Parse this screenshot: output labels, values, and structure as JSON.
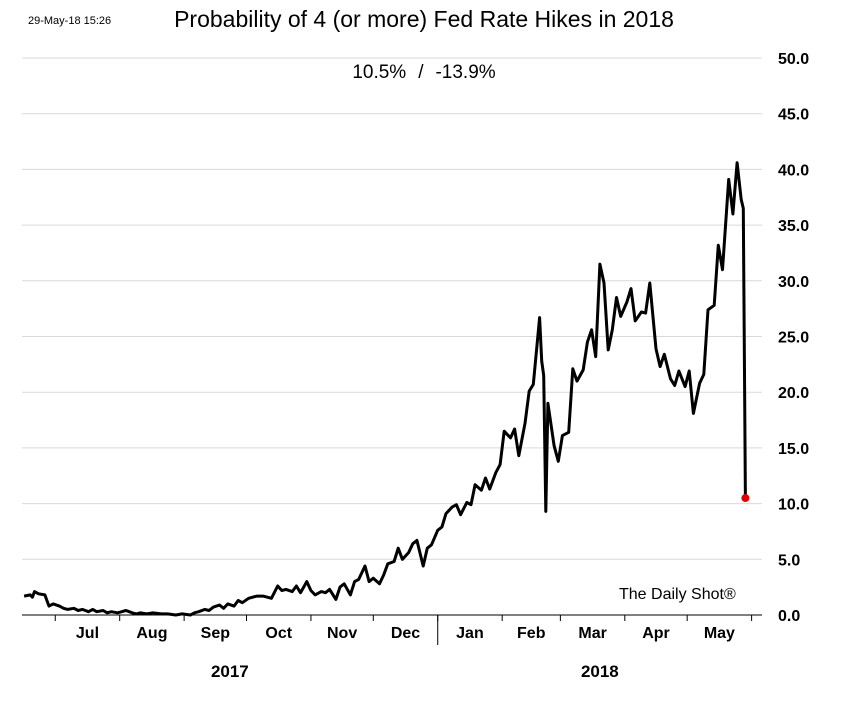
{
  "timestamp": "29-May-18 15:26",
  "watermark": "The Daily Shot®",
  "chart_data": {
    "type": "line",
    "title": "Probability of 4 (or more) Fed Rate Hikes in 2018",
    "subtitle_value": "10.5%",
    "subtitle_separator": "/",
    "subtitle_change": "-13.9%",
    "xlabel": "",
    "ylabel": "",
    "ylim": [
      0,
      50
    ],
    "yticks": [
      "0.0",
      "5.0",
      "10.0",
      "15.0",
      "20.0",
      "25.0",
      "30.0",
      "35.0",
      "40.0",
      "45.0",
      "50.0"
    ],
    "y_axis_side": "right",
    "grid": true,
    "x_month_labels": [
      "Jul",
      "Aug",
      "Sep",
      "Oct",
      "Nov",
      "Dec",
      "Jan",
      "Feb",
      "Mar",
      "Apr",
      "May"
    ],
    "x_year_labels": [
      "2017",
      "2018"
    ],
    "x_start": "2017-06-15",
    "x_end": "2018-06-06",
    "last_point_color": "#e00000",
    "line_color": "#000000",
    "series": [
      {
        "values": [
          [
            "2017-06-16",
            1.7
          ],
          [
            "2017-06-19",
            1.8
          ],
          [
            "2017-06-20",
            1.6
          ],
          [
            "2017-06-21",
            2.1
          ],
          [
            "2017-06-23",
            1.9
          ],
          [
            "2017-06-26",
            1.8
          ],
          [
            "2017-06-27",
            1.3
          ],
          [
            "2017-06-28",
            0.8
          ],
          [
            "2017-06-30",
            1.0
          ],
          [
            "2017-07-03",
            0.8
          ],
          [
            "2017-07-05",
            0.6
          ],
          [
            "2017-07-07",
            0.5
          ],
          [
            "2017-07-10",
            0.6
          ],
          [
            "2017-07-12",
            0.4
          ],
          [
            "2017-07-14",
            0.5
          ],
          [
            "2017-07-17",
            0.3
          ],
          [
            "2017-07-19",
            0.5
          ],
          [
            "2017-07-21",
            0.3
          ],
          [
            "2017-07-24",
            0.4
          ],
          [
            "2017-07-26",
            0.2
          ],
          [
            "2017-07-28",
            0.3
          ],
          [
            "2017-07-31",
            0.2
          ],
          [
            "2017-08-02",
            0.3
          ],
          [
            "2017-08-04",
            0.4
          ],
          [
            "2017-08-07",
            0.2
          ],
          [
            "2017-08-09",
            0.1
          ],
          [
            "2017-08-11",
            0.2
          ],
          [
            "2017-08-14",
            0.1
          ],
          [
            "2017-08-17",
            0.2
          ],
          [
            "2017-08-21",
            0.1
          ],
          [
            "2017-08-24",
            0.1
          ],
          [
            "2017-08-28",
            0.0
          ],
          [
            "2017-08-31",
            0.1
          ],
          [
            "2017-09-04",
            0.0
          ],
          [
            "2017-09-06",
            0.2
          ],
          [
            "2017-09-08",
            0.3
          ],
          [
            "2017-09-11",
            0.5
          ],
          [
            "2017-09-13",
            0.4
          ],
          [
            "2017-09-15",
            0.7
          ],
          [
            "2017-09-18",
            0.9
          ],
          [
            "2017-09-20",
            0.6
          ],
          [
            "2017-09-22",
            1.0
          ],
          [
            "2017-09-25",
            0.8
          ],
          [
            "2017-09-27",
            1.3
          ],
          [
            "2017-09-29",
            1.1
          ],
          [
            "2017-10-02",
            1.5
          ],
          [
            "2017-10-04",
            1.6
          ],
          [
            "2017-10-06",
            1.7
          ],
          [
            "2017-10-09",
            1.7
          ],
          [
            "2017-10-11",
            1.6
          ],
          [
            "2017-10-13",
            1.5
          ],
          [
            "2017-10-16",
            2.6
          ],
          [
            "2017-10-18",
            2.2
          ],
          [
            "2017-10-20",
            2.3
          ],
          [
            "2017-10-23",
            2.1
          ],
          [
            "2017-10-25",
            2.6
          ],
          [
            "2017-10-27",
            2.0
          ],
          [
            "2017-10-30",
            3.0
          ],
          [
            "2017-11-01",
            2.2
          ],
          [
            "2017-11-03",
            1.8
          ],
          [
            "2017-11-06",
            2.1
          ],
          [
            "2017-11-08",
            2.0
          ],
          [
            "2017-11-10",
            2.3
          ],
          [
            "2017-11-13",
            1.4
          ],
          [
            "2017-11-15",
            2.5
          ],
          [
            "2017-11-17",
            2.8
          ],
          [
            "2017-11-20",
            1.8
          ],
          [
            "2017-11-22",
            3.0
          ],
          [
            "2017-11-24",
            3.2
          ],
          [
            "2017-11-27",
            4.4
          ],
          [
            "2017-11-29",
            3.0
          ],
          [
            "2017-12-01",
            3.3
          ],
          [
            "2017-12-04",
            2.8
          ],
          [
            "2017-12-06",
            3.6
          ],
          [
            "2017-12-08",
            4.6
          ],
          [
            "2017-12-11",
            4.8
          ],
          [
            "2017-12-13",
            6.0
          ],
          [
            "2017-12-15",
            5.0
          ],
          [
            "2017-12-18",
            5.6
          ],
          [
            "2017-12-20",
            6.4
          ],
          [
            "2017-12-22",
            6.7
          ],
          [
            "2017-12-25",
            4.4
          ],
          [
            "2017-12-27",
            6.0
          ],
          [
            "2017-12-29",
            6.3
          ],
          [
            "2018-01-01",
            7.6
          ],
          [
            "2018-01-03",
            7.9
          ],
          [
            "2018-01-05",
            9.1
          ],
          [
            "2018-01-08",
            9.7
          ],
          [
            "2018-01-10",
            9.9
          ],
          [
            "2018-01-12",
            9.0
          ],
          [
            "2018-01-15",
            10.1
          ],
          [
            "2018-01-17",
            9.9
          ],
          [
            "2018-01-19",
            11.7
          ],
          [
            "2018-01-22",
            11.2
          ],
          [
            "2018-01-24",
            12.3
          ],
          [
            "2018-01-26",
            11.3
          ],
          [
            "2018-01-29",
            12.8
          ],
          [
            "2018-01-31",
            13.5
          ],
          [
            "2018-02-02",
            16.5
          ],
          [
            "2018-02-05",
            15.9
          ],
          [
            "2018-02-07",
            16.7
          ],
          [
            "2018-02-09",
            14.3
          ],
          [
            "2018-02-12",
            17.2
          ],
          [
            "2018-02-14",
            20.1
          ],
          [
            "2018-02-16",
            20.7
          ],
          [
            "2018-02-19",
            26.7
          ],
          [
            "2018-02-20",
            22.8
          ],
          [
            "2018-02-21",
            21.5
          ],
          [
            "2018-02-22",
            9.3
          ],
          [
            "2018-02-23",
            19.0
          ],
          [
            "2018-02-26",
            15.2
          ],
          [
            "2018-02-28",
            13.8
          ],
          [
            "2018-03-02",
            16.1
          ],
          [
            "2018-03-05",
            16.4
          ],
          [
            "2018-03-07",
            22.1
          ],
          [
            "2018-03-09",
            21.0
          ],
          [
            "2018-03-12",
            22.0
          ],
          [
            "2018-03-14",
            24.5
          ],
          [
            "2018-03-16",
            25.6
          ],
          [
            "2018-03-18",
            23.2
          ],
          [
            "2018-03-20",
            31.5
          ],
          [
            "2018-03-22",
            29.8
          ],
          [
            "2018-03-24",
            23.8
          ],
          [
            "2018-03-26",
            25.6
          ],
          [
            "2018-03-28",
            28.5
          ],
          [
            "2018-03-30",
            26.8
          ],
          [
            "2018-04-02",
            28.1
          ],
          [
            "2018-04-04",
            29.3
          ],
          [
            "2018-04-06",
            26.4
          ],
          [
            "2018-04-09",
            27.2
          ],
          [
            "2018-04-11",
            27.1
          ],
          [
            "2018-04-13",
            29.8
          ],
          [
            "2018-04-16",
            23.9
          ],
          [
            "2018-04-18",
            22.3
          ],
          [
            "2018-04-20",
            23.4
          ],
          [
            "2018-04-23",
            21.2
          ],
          [
            "2018-04-25",
            20.6
          ],
          [
            "2018-04-27",
            21.9
          ],
          [
            "2018-04-30",
            20.5
          ],
          [
            "2018-05-02",
            21.9
          ],
          [
            "2018-05-04",
            18.1
          ],
          [
            "2018-05-07",
            20.8
          ],
          [
            "2018-05-09",
            21.6
          ],
          [
            "2018-05-11",
            27.4
          ],
          [
            "2018-05-14",
            27.8
          ],
          [
            "2018-05-16",
            33.2
          ],
          [
            "2018-05-18",
            31.0
          ],
          [
            "2018-05-21",
            39.1
          ],
          [
            "2018-05-23",
            36.0
          ],
          [
            "2018-05-25",
            40.6
          ],
          [
            "2018-05-27",
            37.3
          ],
          [
            "2018-05-28",
            36.5
          ],
          [
            "2018-05-29",
            10.5
          ]
        ]
      }
    ]
  }
}
